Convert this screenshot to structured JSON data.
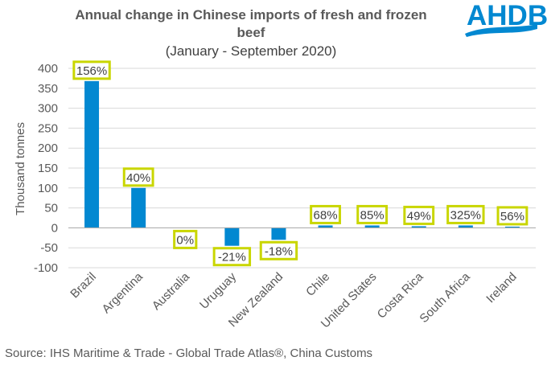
{
  "colors": {
    "bar": "#0288d1",
    "label_border": "#c9d600",
    "gridline": "#d9d9d9",
    "axis": "#a6a6a6",
    "logo": "#0288d1"
  },
  "logo": {
    "text": "AHDB",
    "icon": "ahdb-wave-logo"
  },
  "source": "Source: IHS Maritime & Trade - Global Trade Atlas®, China Customs",
  "chart_data": {
    "type": "bar",
    "title_line1": "Annual change in Chinese imports of fresh and frozen",
    "title_line2": "beef",
    "subtitle": "(January  - September 2020)",
    "xlabel": "",
    "ylabel": "Thousand  tonnes",
    "ylim": [
      -100,
      400
    ],
    "ytick_step": 50,
    "yticks": [
      "400",
      "350",
      "300",
      "250",
      "200",
      "150",
      "100",
      "50",
      "0",
      "-50",
      "-100"
    ],
    "grid": true,
    "categories": [
      "Brazil",
      "Argentina",
      "Australia",
      "Uruguay",
      "New Zealand",
      "Chile",
      "United States",
      "Costa Rica",
      "South Africa",
      "Ireland"
    ],
    "values": [
      368,
      100,
      0,
      -45,
      -30,
      6,
      6,
      4,
      6,
      3
    ],
    "data_labels": [
      "156%",
      "40%",
      "0%",
      "-21%",
      "-18%",
      "68%",
      "85%",
      "49%",
      "325%",
      "56%"
    ]
  }
}
